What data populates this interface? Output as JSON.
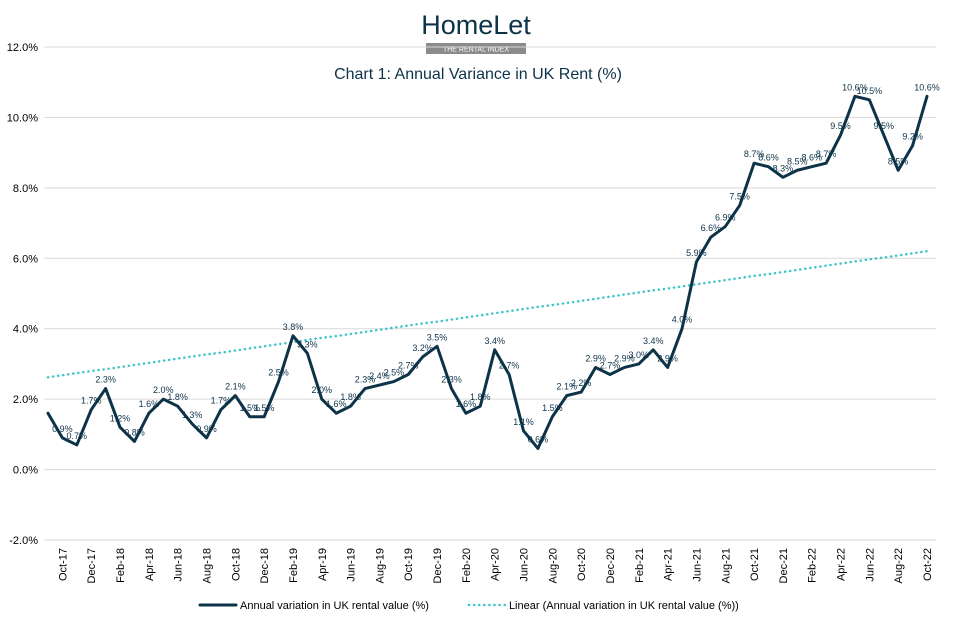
{
  "logo": {
    "name": "HomeLet",
    "tagline": "THE RENTAL INDEX"
  },
  "chart_data": {
    "type": "line",
    "title": "Chart 1: Annual Variance in UK Rent (%)",
    "categories": [
      null,
      "Oct-17",
      null,
      "Dec-17",
      null,
      "Feb-18",
      null,
      "Apr-18",
      null,
      "Jun-18",
      null,
      "Aug-18",
      null,
      "Oct-18",
      null,
      "Dec-18",
      null,
      "Feb-19",
      null,
      "Apr-19",
      null,
      "Jun-19",
      null,
      "Aug-19",
      null,
      "Oct-19",
      null,
      "Dec-19",
      null,
      "Feb-20",
      null,
      "Apr-20",
      null,
      "Jun-20",
      null,
      "Aug-20",
      null,
      "Oct-20",
      null,
      "Dec-20",
      null,
      "Feb-21",
      null,
      "Apr-21",
      null,
      "Jun-21",
      null,
      "Aug-21",
      null,
      "Oct-21",
      null,
      "Dec-21",
      null,
      "Feb-22",
      null,
      "Apr-22",
      null,
      "Jun-22",
      null,
      "Aug-22",
      null,
      "Oct-22"
    ],
    "series": [
      {
        "name": "Annual variation in UK rental value (%)",
        "color": "#0d3349",
        "style": "solid",
        "values": [
          1.6,
          0.9,
          0.7,
          1.7,
          2.3,
          1.2,
          0.8,
          1.6,
          2.0,
          1.8,
          1.3,
          0.9,
          1.7,
          2.1,
          1.5,
          1.5,
          2.5,
          3.8,
          3.3,
          2.0,
          1.6,
          1.8,
          2.3,
          2.4,
          2.5,
          2.7,
          3.2,
          3.5,
          2.3,
          1.6,
          1.8,
          3.4,
          2.7,
          1.1,
          0.6,
          1.5,
          2.1,
          2.2,
          2.9,
          2.7,
          2.9,
          3.0,
          3.4,
          2.9,
          4.0,
          5.9,
          6.6,
          6.9,
          7.5,
          8.7,
          8.6,
          8.3,
          8.5,
          8.6,
          8.7,
          9.5,
          10.6,
          10.5,
          9.5,
          8.5,
          9.2,
          10.6
        ],
        "value_labels": [
          null,
          "0.9%",
          "0.7%",
          "1.7%",
          "2.3%",
          "1.2%",
          "0.8%",
          "1.6%",
          "2.0%",
          "1.8%",
          "1.3%",
          "0.9%",
          "1.7%",
          "2.1%",
          "1.5%",
          "1.5%",
          "2.5%",
          "3.8%",
          "3.3%",
          "2.0%",
          "1.6%",
          "1.8%",
          "2.3%",
          "2.4%",
          "2.5%",
          "2.7%",
          "3.2%",
          "3.5%",
          "2.3%",
          "1.6%",
          "1.8%",
          "3.4%",
          "2.7%",
          "1.1%",
          "0.6%",
          "1.5%",
          "2.1%",
          "2.2%",
          "2.9%",
          "2.7%",
          "2.9%",
          "3.0%",
          "3.4%",
          "2.9%",
          "4.0%",
          "5.9%",
          "6.6%",
          "6.9%",
          "7.5%",
          "8.7%",
          "8.6%",
          "8.3%",
          "8.5%",
          "8.6%",
          "8.7%",
          "9.5%",
          "10.6%",
          "10.5%",
          "9.5%",
          "8.5%",
          "9.2%",
          "10.6%"
        ]
      },
      {
        "name": "Linear (Annual variation in UK rental value (%))",
        "color": "#3cc4c4",
        "style": "dotted",
        "values": [
          2.62,
          2.68,
          2.74,
          2.8,
          2.85,
          2.91,
          2.97,
          3.03,
          3.09,
          3.15,
          3.21,
          3.27,
          3.32,
          3.38,
          3.44,
          3.5,
          3.56,
          3.62,
          3.68,
          3.74,
          3.79,
          3.85,
          3.91,
          3.97,
          4.03,
          4.09,
          4.15,
          4.2,
          4.26,
          4.32,
          4.38,
          4.44,
          4.5,
          4.56,
          4.62,
          4.67,
          4.73,
          4.79,
          4.85,
          4.91,
          4.97,
          5.03,
          5.09,
          5.14,
          5.2,
          5.26,
          5.32,
          5.38,
          5.44,
          5.5,
          5.55,
          5.61,
          5.67,
          5.73,
          5.79,
          5.85,
          5.91,
          5.97,
          6.02,
          6.08,
          6.14,
          6.2
        ]
      }
    ],
    "ylim": [
      -2,
      12
    ],
    "yticks": [
      {
        "value": -2,
        "label": "-2.0%"
      },
      {
        "value": 0,
        "label": "0.0%"
      },
      {
        "value": 2,
        "label": "2.0%"
      },
      {
        "value": 4,
        "label": "4.0%"
      },
      {
        "value": 6,
        "label": "6.0%"
      },
      {
        "value": 8,
        "label": "8.0%"
      },
      {
        "value": 10,
        "label": "10.0%"
      },
      {
        "value": 12,
        "label": "12.0%"
      }
    ],
    "grid": true,
    "legend": "bottom"
  }
}
